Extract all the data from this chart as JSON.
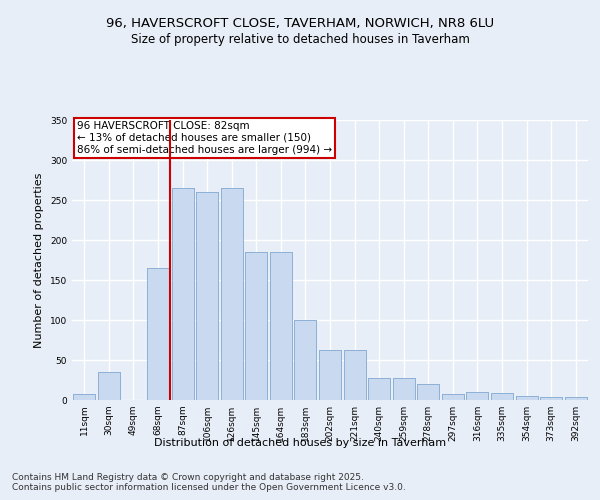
{
  "title_line1": "96, HAVERSCROFT CLOSE, TAVERHAM, NORWICH, NR8 6LU",
  "title_line2": "Size of property relative to detached houses in Taverham",
  "xlabel": "Distribution of detached houses by size in Taverham",
  "ylabel": "Number of detached properties",
  "categories": [
    "11sqm",
    "30sqm",
    "49sqm",
    "68sqm",
    "87sqm",
    "106sqm",
    "126sqm",
    "145sqm",
    "164sqm",
    "183sqm",
    "202sqm",
    "221sqm",
    "240sqm",
    "259sqm",
    "278sqm",
    "297sqm",
    "316sqm",
    "335sqm",
    "354sqm",
    "373sqm",
    "392sqm"
  ],
  "values": [
    7,
    35,
    0,
    165,
    265,
    260,
    265,
    185,
    185,
    100,
    62,
    62,
    28,
    28,
    20,
    7,
    10,
    9,
    5,
    4,
    4
  ],
  "bar_color": "#c9d9f0",
  "bar_edge_color": "#8aadd4",
  "vline_color": "#cc0000",
  "annotation_text": "96 HAVERSCROFT CLOSE: 82sqm\n← 13% of detached houses are smaller (150)\n86% of semi-detached houses are larger (994) →",
  "annotation_box_color": "#ffffff",
  "annotation_box_edge_color": "#cc0000",
  "annotation_fontsize": 7.5,
  "ylim": [
    0,
    350
  ],
  "yticks": [
    0,
    50,
    100,
    150,
    200,
    250,
    300,
    350
  ],
  "background_color": "#e8eef7",
  "plot_bg_color": "#e8eef7",
  "grid_color": "#ffffff",
  "title_fontsize": 9.5,
  "subtitle_fontsize": 8.5,
  "xlabel_fontsize": 8,
  "ylabel_fontsize": 8,
  "tick_fontsize": 6.5,
  "footer_text": "Contains HM Land Registry data © Crown copyright and database right 2025.\nContains public sector information licensed under the Open Government Licence v3.0.",
  "footer_fontsize": 6.5
}
